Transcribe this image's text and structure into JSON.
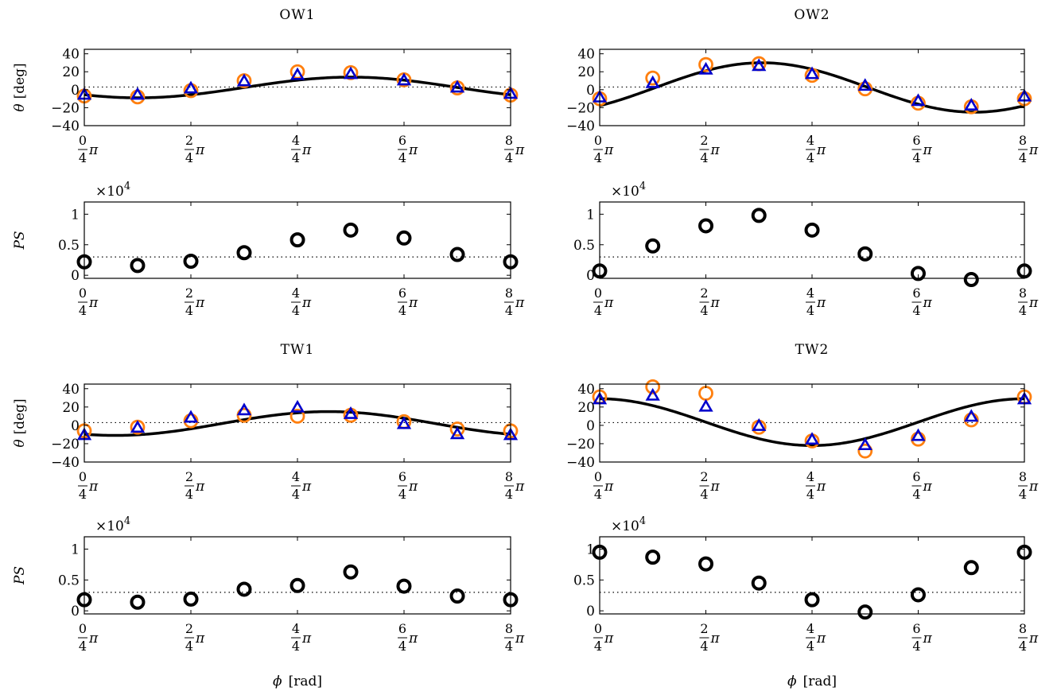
{
  "colors": {
    "curve": "#000000",
    "orange": "#ff7f0e",
    "blue": "#0000cc",
    "ps_marker": "#000000",
    "dotted": "#000000"
  },
  "x_axis": {
    "label_symbol": "ϕ",
    "label_unit": "[rad]",
    "ticks": [
      {
        "num": "0",
        "den": "4",
        "pi": "π"
      },
      {
        "num": "2",
        "den": "4",
        "pi": "π"
      },
      {
        "num": "4",
        "den": "4",
        "pi": "π"
      },
      {
        "num": "6",
        "den": "4",
        "pi": "π"
      },
      {
        "num": "8",
        "den": "4",
        "pi": "π"
      }
    ]
  },
  "chart_data": [
    {
      "type": "scatter",
      "title": "OW1",
      "row": "theta",
      "col": 0,
      "block": 0,
      "ylabel_symbol": "θ",
      "ylabel_unit": "[deg]",
      "xlim": [
        0,
        6.2832
      ],
      "ylim": [
        -40,
        45
      ],
      "yticks": [
        40,
        20,
        0,
        -40
      ],
      "yticks_neg": [
        "−20"
      ],
      "ref_line": 3,
      "curve": {
        "offset": 2.5,
        "amplitude": 11.5,
        "peak_phase": 3.93
      },
      "x": [
        0,
        0.785,
        1.571,
        2.356,
        3.142,
        3.927,
        4.712,
        5.498,
        6.283
      ],
      "series": [
        {
          "marker": "circle",
          "values": [
            -7,
            -8,
            -1,
            10,
            20,
            19,
            11,
            2,
            -6
          ]
        },
        {
          "marker": "triangle",
          "values": [
            -6,
            -6,
            1,
            9,
            16,
            17,
            10,
            2,
            -5
          ]
        }
      ]
    },
    {
      "type": "scatter",
      "title": "OW2",
      "row": "theta",
      "col": 1,
      "block": 0,
      "ylabel_symbol": "",
      "ylabel_unit": "",
      "xlim": [
        0,
        6.2832
      ],
      "ylim": [
        -40,
        45
      ],
      "yticks": [
        40,
        20,
        0,
        -40
      ],
      "yticks_neg": [
        "−20"
      ],
      "ref_line": 3,
      "curve": {
        "offset": 2.5,
        "amplitude": 27.5,
        "peak_phase": 2.4
      },
      "x": [
        0,
        0.785,
        1.571,
        2.356,
        3.142,
        3.927,
        4.712,
        5.498,
        6.283
      ],
      "series": [
        {
          "marker": "circle",
          "values": [
            -10,
            13,
            28,
            29,
            16,
            1,
            -15,
            -19,
            -10
          ]
        },
        {
          "marker": "triangle",
          "values": [
            -9,
            7,
            22,
            26,
            17,
            4,
            -13,
            -18,
            -8
          ]
        }
      ]
    },
    {
      "type": "scatter",
      "title": "",
      "row": "ps",
      "col": 0,
      "block": 0,
      "ylabel_symbol": "PS",
      "multiplier": "×10",
      "multiplier_exp": "4",
      "xlim": [
        0,
        6.2832
      ],
      "ylim": [
        -0.05,
        1.2
      ],
      "yticks": [
        "1",
        "0.5",
        "0"
      ],
      "yticks_val": [
        1,
        0.5,
        0
      ],
      "ref_line": 0.3,
      "x": [
        0,
        0.785,
        1.571,
        2.356,
        3.142,
        3.927,
        4.712,
        5.498,
        6.283
      ],
      "series": [
        {
          "marker": "circle",
          "values": [
            0.22,
            0.16,
            0.23,
            0.37,
            0.58,
            0.74,
            0.61,
            0.34,
            0.22
          ]
        }
      ]
    },
    {
      "type": "scatter",
      "title": "",
      "row": "ps",
      "col": 1,
      "block": 0,
      "ylabel_symbol": "",
      "multiplier": "×10",
      "multiplier_exp": "4",
      "xlim": [
        0,
        6.2832
      ],
      "ylim": [
        -0.05,
        1.2
      ],
      "yticks": [
        "1",
        "0.5",
        "0"
      ],
      "yticks_val": [
        1,
        0.5,
        0
      ],
      "ref_line": 0.3,
      "x": [
        0,
        0.785,
        1.571,
        2.356,
        3.142,
        3.927,
        4.712,
        5.498,
        6.283
      ],
      "series": [
        {
          "marker": "circle",
          "values": [
            0.07,
            0.48,
            0.81,
            0.98,
            0.74,
            0.35,
            0.03,
            -0.07,
            0.07
          ]
        }
      ]
    },
    {
      "type": "scatter",
      "title": "TW1",
      "row": "theta",
      "col": 0,
      "block": 1,
      "ylabel_symbol": "θ",
      "ylabel_unit": "[deg]",
      "xlim": [
        0,
        6.2832
      ],
      "ylim": [
        -40,
        45
      ],
      "yticks": [
        40,
        20,
        0,
        -40
      ],
      "yticks_neg": [
        "−20"
      ],
      "ref_line": 3,
      "curve": {
        "offset": 2.0,
        "amplitude": 13,
        "peak_phase": 3.6
      },
      "x": [
        0,
        0.785,
        1.571,
        2.356,
        3.142,
        3.927,
        4.712,
        5.498,
        6.283
      ],
      "series": [
        {
          "marker": "circle",
          "values": [
            -6,
            -2,
            5,
            11,
            10,
            11,
            4,
            -4,
            -6
          ]
        },
        {
          "marker": "triangle",
          "values": [
            -11,
            -3,
            8,
            16,
            19,
            12,
            1,
            -10,
            -11
          ]
        }
      ]
    },
    {
      "type": "scatter",
      "title": "TW2",
      "row": "theta",
      "col": 1,
      "block": 1,
      "ylabel_symbol": "",
      "ylabel_unit": "",
      "xlim": [
        0,
        6.2832
      ],
      "ylim": [
        -40,
        45
      ],
      "yticks": [
        40,
        20,
        0,
        -40
      ],
      "yticks_neg": [
        "−20"
      ],
      "ref_line": 3,
      "curve": {
        "offset": 3.5,
        "amplitude": 25.5,
        "peak_phase": 6.283
      },
      "x": [
        0,
        0.785,
        1.571,
        2.356,
        3.142,
        3.927,
        4.712,
        5.498,
        6.283
      ],
      "series": [
        {
          "marker": "circle",
          "values": [
            31,
            42,
            35,
            -2,
            -17,
            -28,
            -15,
            6,
            31
          ]
        },
        {
          "marker": "triangle",
          "values": [
            28,
            32,
            20,
            -1,
            -16,
            -22,
            -12,
            9,
            28
          ]
        }
      ]
    },
    {
      "type": "scatter",
      "title": "",
      "row": "ps",
      "col": 0,
      "block": 1,
      "ylabel_symbol": "PS",
      "multiplier": "×10",
      "multiplier_exp": "4",
      "xlim": [
        0,
        6.2832
      ],
      "ylim": [
        -0.05,
        1.2
      ],
      "yticks": [
        "1",
        "0.5",
        "0"
      ],
      "yticks_val": [
        1,
        0.5,
        0
      ],
      "ref_line": 0.3,
      "x": [
        0,
        0.785,
        1.571,
        2.356,
        3.142,
        3.927,
        4.712,
        5.498,
        6.283
      ],
      "series": [
        {
          "marker": "circle",
          "values": [
            0.18,
            0.14,
            0.19,
            0.35,
            0.41,
            0.63,
            0.4,
            0.24,
            0.18
          ]
        }
      ]
    },
    {
      "type": "scatter",
      "title": "",
      "row": "ps",
      "col": 1,
      "block": 1,
      "ylabel_symbol": "",
      "multiplier": "×10",
      "multiplier_exp": "4",
      "xlim": [
        0,
        6.2832
      ],
      "ylim": [
        -0.05,
        1.2
      ],
      "yticks": [
        "1",
        "0.5",
        "0"
      ],
      "yticks_val": [
        1,
        0.5,
        0
      ],
      "ref_line": 0.3,
      "x": [
        0,
        0.785,
        1.571,
        2.356,
        3.142,
        3.927,
        4.712,
        5.498,
        6.283
      ],
      "series": [
        {
          "marker": "circle",
          "values": [
            0.95,
            0.87,
            0.76,
            0.45,
            0.18,
            -0.02,
            0.26,
            0.7,
            0.95
          ]
        }
      ]
    }
  ]
}
